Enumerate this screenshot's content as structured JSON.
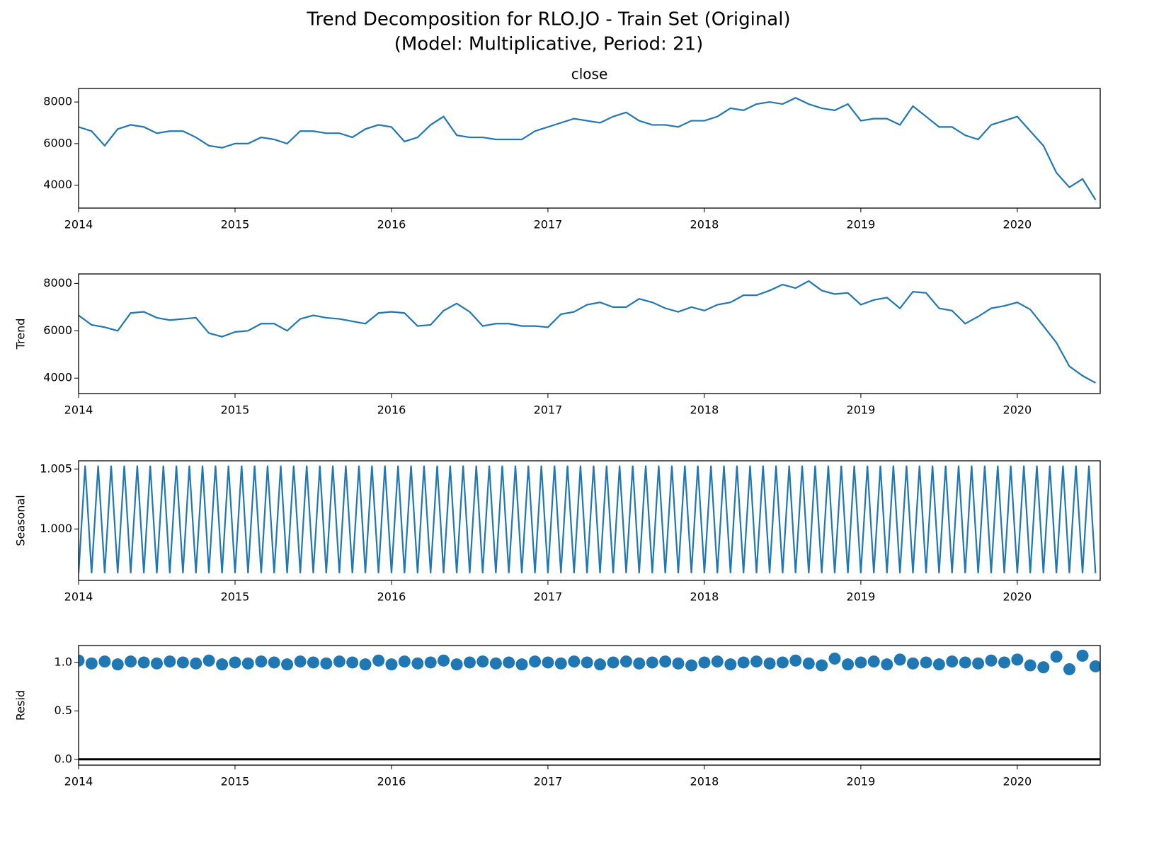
{
  "title": [
    "Trend Decomposition for RLO.JO - Train Set (Original)",
    "(Model: Multiplicative, Period: 21)"
  ],
  "chart_data": [
    {
      "type": "line",
      "title": "close",
      "color": "#1f77b4",
      "x": [
        2014,
        2014.083,
        2014.167,
        2014.25,
        2014.333,
        2014.417,
        2014.5,
        2014.583,
        2014.667,
        2014.75,
        2014.833,
        2014.917,
        2015,
        2015.083,
        2015.167,
        2015.25,
        2015.333,
        2015.417,
        2015.5,
        2015.583,
        2015.667,
        2015.75,
        2015.833,
        2015.917,
        2016,
        2016.083,
        2016.167,
        2016.25,
        2016.333,
        2016.417,
        2016.5,
        2016.583,
        2016.667,
        2016.75,
        2016.833,
        2016.917,
        2017,
        2017.083,
        2017.167,
        2017.25,
        2017.333,
        2017.417,
        2017.5,
        2017.583,
        2017.667,
        2017.75,
        2017.833,
        2017.917,
        2018,
        2018.083,
        2018.167,
        2018.25,
        2018.333,
        2018.417,
        2018.5,
        2018.583,
        2018.667,
        2018.75,
        2018.833,
        2018.917,
        2019,
        2019.083,
        2019.167,
        2019.25,
        2019.333,
        2019.417,
        2019.5,
        2019.583,
        2019.667,
        2019.75,
        2019.833,
        2019.917,
        2020,
        2020.083,
        2020.167,
        2020.25,
        2020.333,
        2020.417,
        2020.5
      ],
      "values": [
        6800,
        6600,
        5900,
        6700,
        6900,
        6800,
        6500,
        6600,
        6600,
        6300,
        5900,
        5800,
        6000,
        6000,
        6300,
        6200,
        6000,
        6600,
        6600,
        6500,
        6500,
        6300,
        6700,
        6900,
        6800,
        6100,
        6300,
        6900,
        7300,
        6400,
        6300,
        6300,
        6200,
        6200,
        6200,
        6600,
        6800,
        7000,
        7200,
        7100,
        7000,
        7300,
        7500,
        7100,
        6900,
        6900,
        6800,
        7100,
        7100,
        7300,
        7700,
        7600,
        7900,
        8000,
        7900,
        8200,
        7900,
        7700,
        7600,
        7900,
        7100,
        7200,
        7200,
        6900,
        7800,
        7300,
        6800,
        6800,
        6400,
        6200,
        6900,
        7100,
        7300,
        6600,
        5900,
        4600,
        3900,
        4300,
        3300
      ],
      "xlim": [
        2014,
        2020.53
      ],
      "xticks": [
        2014,
        2015,
        2016,
        2017,
        2018,
        2019,
        2020
      ],
      "ylim": [
        2900,
        8650
      ],
      "yticks": [
        4000,
        6000,
        8000
      ]
    },
    {
      "type": "line",
      "ylabel": "Trend",
      "color": "#1f77b4",
      "x": [
        2014,
        2014.083,
        2014.167,
        2014.25,
        2014.333,
        2014.417,
        2014.5,
        2014.583,
        2014.667,
        2014.75,
        2014.833,
        2014.917,
        2015,
        2015.083,
        2015.167,
        2015.25,
        2015.333,
        2015.417,
        2015.5,
        2015.583,
        2015.667,
        2015.75,
        2015.833,
        2015.917,
        2016,
        2016.083,
        2016.167,
        2016.25,
        2016.333,
        2016.417,
        2016.5,
        2016.583,
        2016.667,
        2016.75,
        2016.833,
        2016.917,
        2017,
        2017.083,
        2017.167,
        2017.25,
        2017.333,
        2017.417,
        2017.5,
        2017.583,
        2017.667,
        2017.75,
        2017.833,
        2017.917,
        2018,
        2018.083,
        2018.167,
        2018.25,
        2018.333,
        2018.417,
        2018.5,
        2018.583,
        2018.667,
        2018.75,
        2018.833,
        2018.917,
        2019,
        2019.083,
        2019.167,
        2019.25,
        2019.333,
        2019.417,
        2019.5,
        2019.583,
        2019.667,
        2019.75,
        2019.833,
        2019.917,
        2020,
        2020.083,
        2020.167,
        2020.25,
        2020.333,
        2020.417,
        2020.5
      ],
      "values": [
        6650,
        6250,
        6150,
        6000,
        6750,
        6800,
        6550,
        6450,
        6500,
        6550,
        5900,
        5750,
        5950,
        6000,
        6300,
        6300,
        6000,
        6500,
        6650,
        6550,
        6500,
        6400,
        6300,
        6750,
        6800,
        6750,
        6200,
        6250,
        6850,
        7150,
        6800,
        6200,
        6300,
        6300,
        6200,
        6200,
        6150,
        6700,
        6800,
        7100,
        7200,
        7000,
        7000,
        7350,
        7200,
        6950,
        6800,
        7000,
        6850,
        7100,
        7200,
        7500,
        7500,
        7700,
        7950,
        7800,
        8100,
        7700,
        7550,
        7600,
        7100,
        7300,
        7400,
        6950,
        7650,
        7600,
        6950,
        6850,
        6300,
        6600,
        6950,
        7050,
        7200,
        6900,
        6200,
        5500,
        4500,
        4100,
        3800
      ],
      "xlim": [
        2014,
        2020.53
      ],
      "xticks": [
        2014,
        2015,
        2016,
        2017,
        2018,
        2019,
        2020
      ],
      "ylim": [
        3350,
        8400
      ],
      "yticks": [
        4000,
        6000,
        8000
      ]
    },
    {
      "type": "line",
      "ylabel": "Seasonal",
      "color": "#1f77b4",
      "x": [
        2014,
        2014.042,
        2014.083,
        2014.125,
        2014.167,
        2014.208,
        2014.25,
        2014.292,
        2014.333,
        2014.375,
        2014.417,
        2014.458,
        2014.5,
        2014.542,
        2014.583,
        2014.625,
        2014.667,
        2014.708,
        2014.75,
        2014.792,
        2014.833,
        2014.875,
        2014.917,
        2014.958,
        2015,
        2015.042,
        2015.083,
        2015.125,
        2015.167,
        2015.208,
        2015.25,
        2015.292,
        2015.333,
        2015.375,
        2015.417,
        2015.458,
        2015.5,
        2015.542,
        2015.583,
        2015.625,
        2015.667,
        2015.708,
        2015.75,
        2015.792,
        2015.833,
        2015.875,
        2015.917,
        2015.958,
        2016,
        2016.042,
        2016.083,
        2016.125,
        2016.167,
        2016.208,
        2016.25,
        2016.292,
        2016.333,
        2016.375,
        2016.417,
        2016.458,
        2016.5,
        2016.542,
        2016.583,
        2016.625,
        2016.667,
        2016.708,
        2016.75,
        2016.792,
        2016.833,
        2016.875,
        2016.917,
        2016.958,
        2017,
        2017.042,
        2017.083,
        2017.125,
        2017.167,
        2017.208,
        2017.25,
        2017.292,
        2017.333,
        2017.375,
        2017.417,
        2017.458,
        2017.5,
        2017.542,
        2017.583,
        2017.625,
        2017.667,
        2017.708,
        2017.75,
        2017.792,
        2017.833,
        2017.875,
        2017.917,
        2017.958,
        2018,
        2018.042,
        2018.083,
        2018.125,
        2018.167,
        2018.208,
        2018.25,
        2018.292,
        2018.333,
        2018.375,
        2018.417,
        2018.458,
        2018.5,
        2018.542,
        2018.583,
        2018.625,
        2018.667,
        2018.708,
        2018.75,
        2018.792,
        2018.833,
        2018.875,
        2018.917,
        2018.958,
        2019,
        2019.042,
        2019.083,
        2019.125,
        2019.167,
        2019.208,
        2019.25,
        2019.292,
        2019.333,
        2019.375,
        2019.417,
        2019.458,
        2019.5,
        2019.542,
        2019.583,
        2019.625,
        2019.667,
        2019.708,
        2019.75,
        2019.792,
        2019.833,
        2019.875,
        2019.917,
        2019.958,
        2020,
        2020.042,
        2020.083,
        2020.125,
        2020.167,
        2020.208,
        2020.25,
        2020.292,
        2020.333,
        2020.375,
        2020.417,
        2020.458,
        2020.5
      ],
      "values": [
        0.9963,
        1.0053,
        0.9963,
        1.0053,
        0.9963,
        1.0053,
        0.9963,
        1.0053,
        0.9963,
        1.0053,
        0.9963,
        1.0053,
        0.9963,
        1.0053,
        0.9963,
        1.0053,
        0.9963,
        1.0053,
        0.9963,
        1.0053,
        0.9963,
        1.0053,
        0.9963,
        1.0053,
        0.9963,
        1.0053,
        0.9963,
        1.0053,
        0.9963,
        1.0053,
        0.9963,
        1.0053,
        0.9963,
        1.0053,
        0.9963,
        1.0053,
        0.9963,
        1.0053,
        0.9963,
        1.0053,
        0.9963,
        1.0053,
        0.9963,
        1.0053,
        0.9963,
        1.0053,
        0.9963,
        1.0053,
        0.9963,
        1.0053,
        0.9963,
        1.0053,
        0.9963,
        1.0053,
        0.9963,
        1.0053,
        0.9963,
        1.0053,
        0.9963,
        1.0053,
        0.9963,
        1.0053,
        0.9963,
        1.0053,
        0.9963,
        1.0053,
        0.9963,
        1.0053,
        0.9963,
        1.0053,
        0.9963,
        1.0053,
        0.9963,
        1.0053,
        0.9963,
        1.0053,
        0.9963,
        1.0053,
        0.9963,
        1.0053,
        0.9963,
        1.0053,
        0.9963,
        1.0053,
        0.9963,
        1.0053,
        0.9963,
        1.0053,
        0.9963,
        1.0053,
        0.9963,
        1.0053,
        0.9963,
        1.0053,
        0.9963,
        1.0053,
        0.9963,
        1.0053,
        0.9963,
        1.0053,
        0.9963,
        1.0053,
        0.9963,
        1.0053,
        0.9963,
        1.0053,
        0.9963,
        1.0053,
        0.9963,
        1.0053,
        0.9963,
        1.0053,
        0.9963,
        1.0053,
        0.9963,
        1.0053,
        0.9963,
        1.0053,
        0.9963,
        1.0053,
        0.9963,
        1.0053,
        0.9963,
        1.0053,
        0.9963,
        1.0053,
        0.9963,
        1.0053,
        0.9963,
        1.0053,
        0.9963,
        1.0053,
        0.9963,
        1.0053,
        0.9963,
        1.0053,
        0.9963,
        1.0053,
        0.9963,
        1.0053,
        0.9963,
        1.0053,
        0.9963,
        1.0053,
        0.9963,
        1.0053,
        0.9963,
        1.0053,
        0.9963,
        1.0053,
        0.9963,
        1.0053,
        0.9963,
        1.0053,
        0.9963,
        1.0053,
        0.9963
      ],
      "xlim": [
        2014,
        2020.53
      ],
      "xticks": [
        2014,
        2015,
        2016,
        2017,
        2018,
        2019,
        2020
      ],
      "ylim": [
        0.9957,
        1.0057
      ],
      "yticks": [
        {
          "value": 1.0,
          "label": "1.000"
        },
        {
          "value": 1.005,
          "label": "1.005"
        }
      ]
    },
    {
      "type": "scatter",
      "ylabel": "Resid",
      "color": "#1f77b4",
      "hline": 0,
      "x": [
        2014,
        2014.083,
        2014.167,
        2014.25,
        2014.333,
        2014.417,
        2014.5,
        2014.583,
        2014.667,
        2014.75,
        2014.833,
        2014.917,
        2015,
        2015.083,
        2015.167,
        2015.25,
        2015.333,
        2015.417,
        2015.5,
        2015.583,
        2015.667,
        2015.75,
        2015.833,
        2015.917,
        2016,
        2016.083,
        2016.167,
        2016.25,
        2016.333,
        2016.417,
        2016.5,
        2016.583,
        2016.667,
        2016.75,
        2016.833,
        2016.917,
        2017,
        2017.083,
        2017.167,
        2017.25,
        2017.333,
        2017.417,
        2017.5,
        2017.583,
        2017.667,
        2017.75,
        2017.833,
        2017.917,
        2018,
        2018.083,
        2018.167,
        2018.25,
        2018.333,
        2018.417,
        2018.5,
        2018.583,
        2018.667,
        2018.75,
        2018.833,
        2018.917,
        2019,
        2019.083,
        2019.167,
        2019.25,
        2019.333,
        2019.417,
        2019.5,
        2019.583,
        2019.667,
        2019.75,
        2019.833,
        2019.917,
        2020,
        2020.083,
        2020.167,
        2020.25,
        2020.333,
        2020.417,
        2020.5
      ],
      "values": [
        1.02,
        0.99,
        1.01,
        0.98,
        1.01,
        1.0,
        0.99,
        1.01,
        1.0,
        0.99,
        1.02,
        0.98,
        1.0,
        0.99,
        1.01,
        1.0,
        0.98,
        1.01,
        1.0,
        0.99,
        1.01,
        1.0,
        0.98,
        1.02,
        0.98,
        1.01,
        0.99,
        1.0,
        1.02,
        0.98,
        1.0,
        1.01,
        0.99,
        1.0,
        0.98,
        1.01,
        1.0,
        0.99,
        1.01,
        1.0,
        0.98,
        1.0,
        1.01,
        0.99,
        1.0,
        1.01,
        0.99,
        0.97,
        1.0,
        1.01,
        0.98,
        1.0,
        1.01,
        0.99,
        1.0,
        1.02,
        0.99,
        0.97,
        1.04,
        0.98,
        1.0,
        1.01,
        0.98,
        1.03,
        0.99,
        1.0,
        0.98,
        1.01,
        1.0,
        0.99,
        1.02,
        1.0,
        1.03,
        0.97,
        0.95,
        1.06,
        0.93,
        1.07,
        0.96
      ],
      "xlim": [
        2014,
        2020.53
      ],
      "xticks": [
        2014,
        2015,
        2016,
        2017,
        2018,
        2019,
        2020
      ],
      "ylim": [
        -0.06,
        1.175
      ],
      "yticks": [
        {
          "value": 0,
          "label": "0.0"
        },
        {
          "value": 0.5,
          "label": "0.5"
        },
        {
          "value": 1.0,
          "label": "1.0"
        }
      ]
    }
  ]
}
